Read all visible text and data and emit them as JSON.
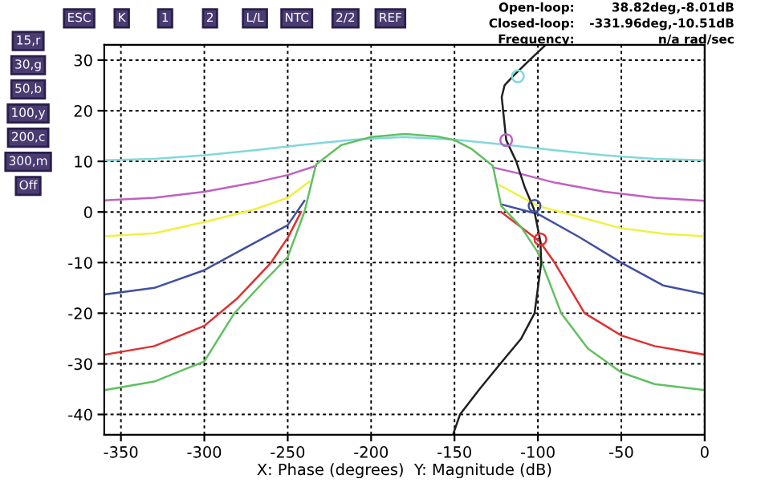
{
  "chart_data": {
    "type": "line",
    "xlabel": "X: Phase (degrees)  Y: Magnitude (dB)",
    "xlim": [
      -360,
      0
    ],
    "xticks": [
      -350,
      -300,
      -250,
      -200,
      -150,
      -100,
      -50,
      0
    ],
    "ylim": [
      -44,
      33
    ],
    "yticks": [
      -40,
      -30,
      -20,
      -10,
      0,
      10,
      20,
      30
    ],
    "grid": true,
    "annotations": [
      "ESC",
      "K",
      "1",
      "2",
      "L/L",
      "NTC",
      "2/2",
      "REF",
      "15,r",
      "30,g",
      "50,b",
      "100,y",
      "200,c",
      "300,m",
      "Off",
      "Open-loop:",
      "38.82deg,-8.01dB",
      "Closed-loop:",
      "-331.96deg,-10.51dB",
      "Frequency:",
      "n/a rad/sec"
    ],
    "series": [
      {
        "color": "#80d8dc",
        "x": [
          -360,
          -330,
          -300,
          -270,
          -240,
          -210,
          -180,
          -150,
          -120,
          -90,
          -60,
          -30,
          0
        ],
        "values": [
          10.2,
          10.5,
          11.2,
          12.2,
          13.3,
          14.3,
          14.8,
          14.3,
          13.3,
          12.2,
          11.2,
          10.5,
          10.2
        ]
      },
      {
        "color": "#c060c0",
        "x": [
          -360,
          -330,
          -300,
          -270,
          -250,
          -233,
          -180,
          -127,
          -110,
          -90,
          -60,
          -30,
          0
        ],
        "values": [
          2.3,
          2.8,
          4.0,
          5.8,
          7.3,
          9.1,
          null,
          8.8,
          7.5,
          5.8,
          4.0,
          2.8,
          2.2
        ]
      },
      {
        "color": "#f0f040",
        "x": [
          -360,
          -330,
          -300,
          -270,
          -250,
          -237,
          -180,
          -123,
          -100,
          -75,
          -50,
          -25,
          0
        ],
        "values": [
          -4.8,
          -4.2,
          -2,
          0.5,
          2.8,
          6,
          null,
          5.3,
          1.2,
          -1,
          -3.2,
          -4.3,
          -4.8
        ]
      },
      {
        "color": "#4050a0",
        "x": [
          -360,
          -330,
          -300,
          -275,
          -250,
          -240,
          -180,
          -122,
          -100,
          -75,
          -50,
          -25,
          0
        ],
        "values": [
          -16.3,
          -15,
          -11.5,
          -7,
          -2.6,
          2.2,
          null,
          1.5,
          -0.4,
          -5,
          -10,
          -14.5,
          -16.2
        ]
      },
      {
        "color": "#e03030",
        "x": [
          -360,
          -330,
          -300,
          -280,
          -260,
          -250,
          -242,
          -180,
          -122,
          -99,
          -90,
          -72,
          -50,
          -30,
          0
        ],
        "values": [
          -28.2,
          -26.5,
          -22.5,
          -17,
          -10,
          -5.1,
          0,
          null,
          0,
          -5.8,
          -10,
          -20,
          -24.4,
          -26.5,
          -28.2
        ]
      },
      {
        "color": "#60c060",
        "x": [
          -360,
          -330,
          -300,
          -282,
          -265,
          -250,
          -240,
          -233,
          -218,
          -200,
          -180,
          -160,
          -150,
          -140,
          -127,
          -122,
          -110,
          -100,
          -86,
          -70,
          -50,
          -30,
          0
        ],
        "values": [
          -35.2,
          -33.5,
          -29.5,
          -20,
          -14,
          -8.9,
          0,
          9.4,
          13.2,
          14.8,
          15.4,
          14.9,
          14.2,
          12.5,
          9.1,
          1.2,
          -3,
          -8,
          -20,
          -27,
          -31.7,
          -34,
          -35.2
        ]
      },
      {
        "color": "#202020",
        "x": [
          -150.6,
          -146.7,
          -135,
          -122.6,
          -110,
          -102,
          -98,
          -98.5,
          -102.4,
          -108,
          -113,
          -119,
          -121.7,
          -120,
          -115,
          -105,
          -96
        ],
        "values": [
          -43.7,
          -40,
          -35,
          -30,
          -25,
          -20,
          -10,
          -5.8,
          0.6,
          5,
          10,
          14.2,
          22.7,
          25,
          26.8,
          30,
          32.8
        ]
      },
      {
        "type": "scatter",
        "marker": "circle",
        "x": [
          -112,
          -119,
          -102,
          -98.5
        ],
        "values": [
          26.8,
          14.2,
          1.2,
          -5.4
        ],
        "colors": [
          "#80d8dc",
          "#c060c0",
          "#4050a0",
          "#e03030"
        ]
      }
    ]
  }
}
